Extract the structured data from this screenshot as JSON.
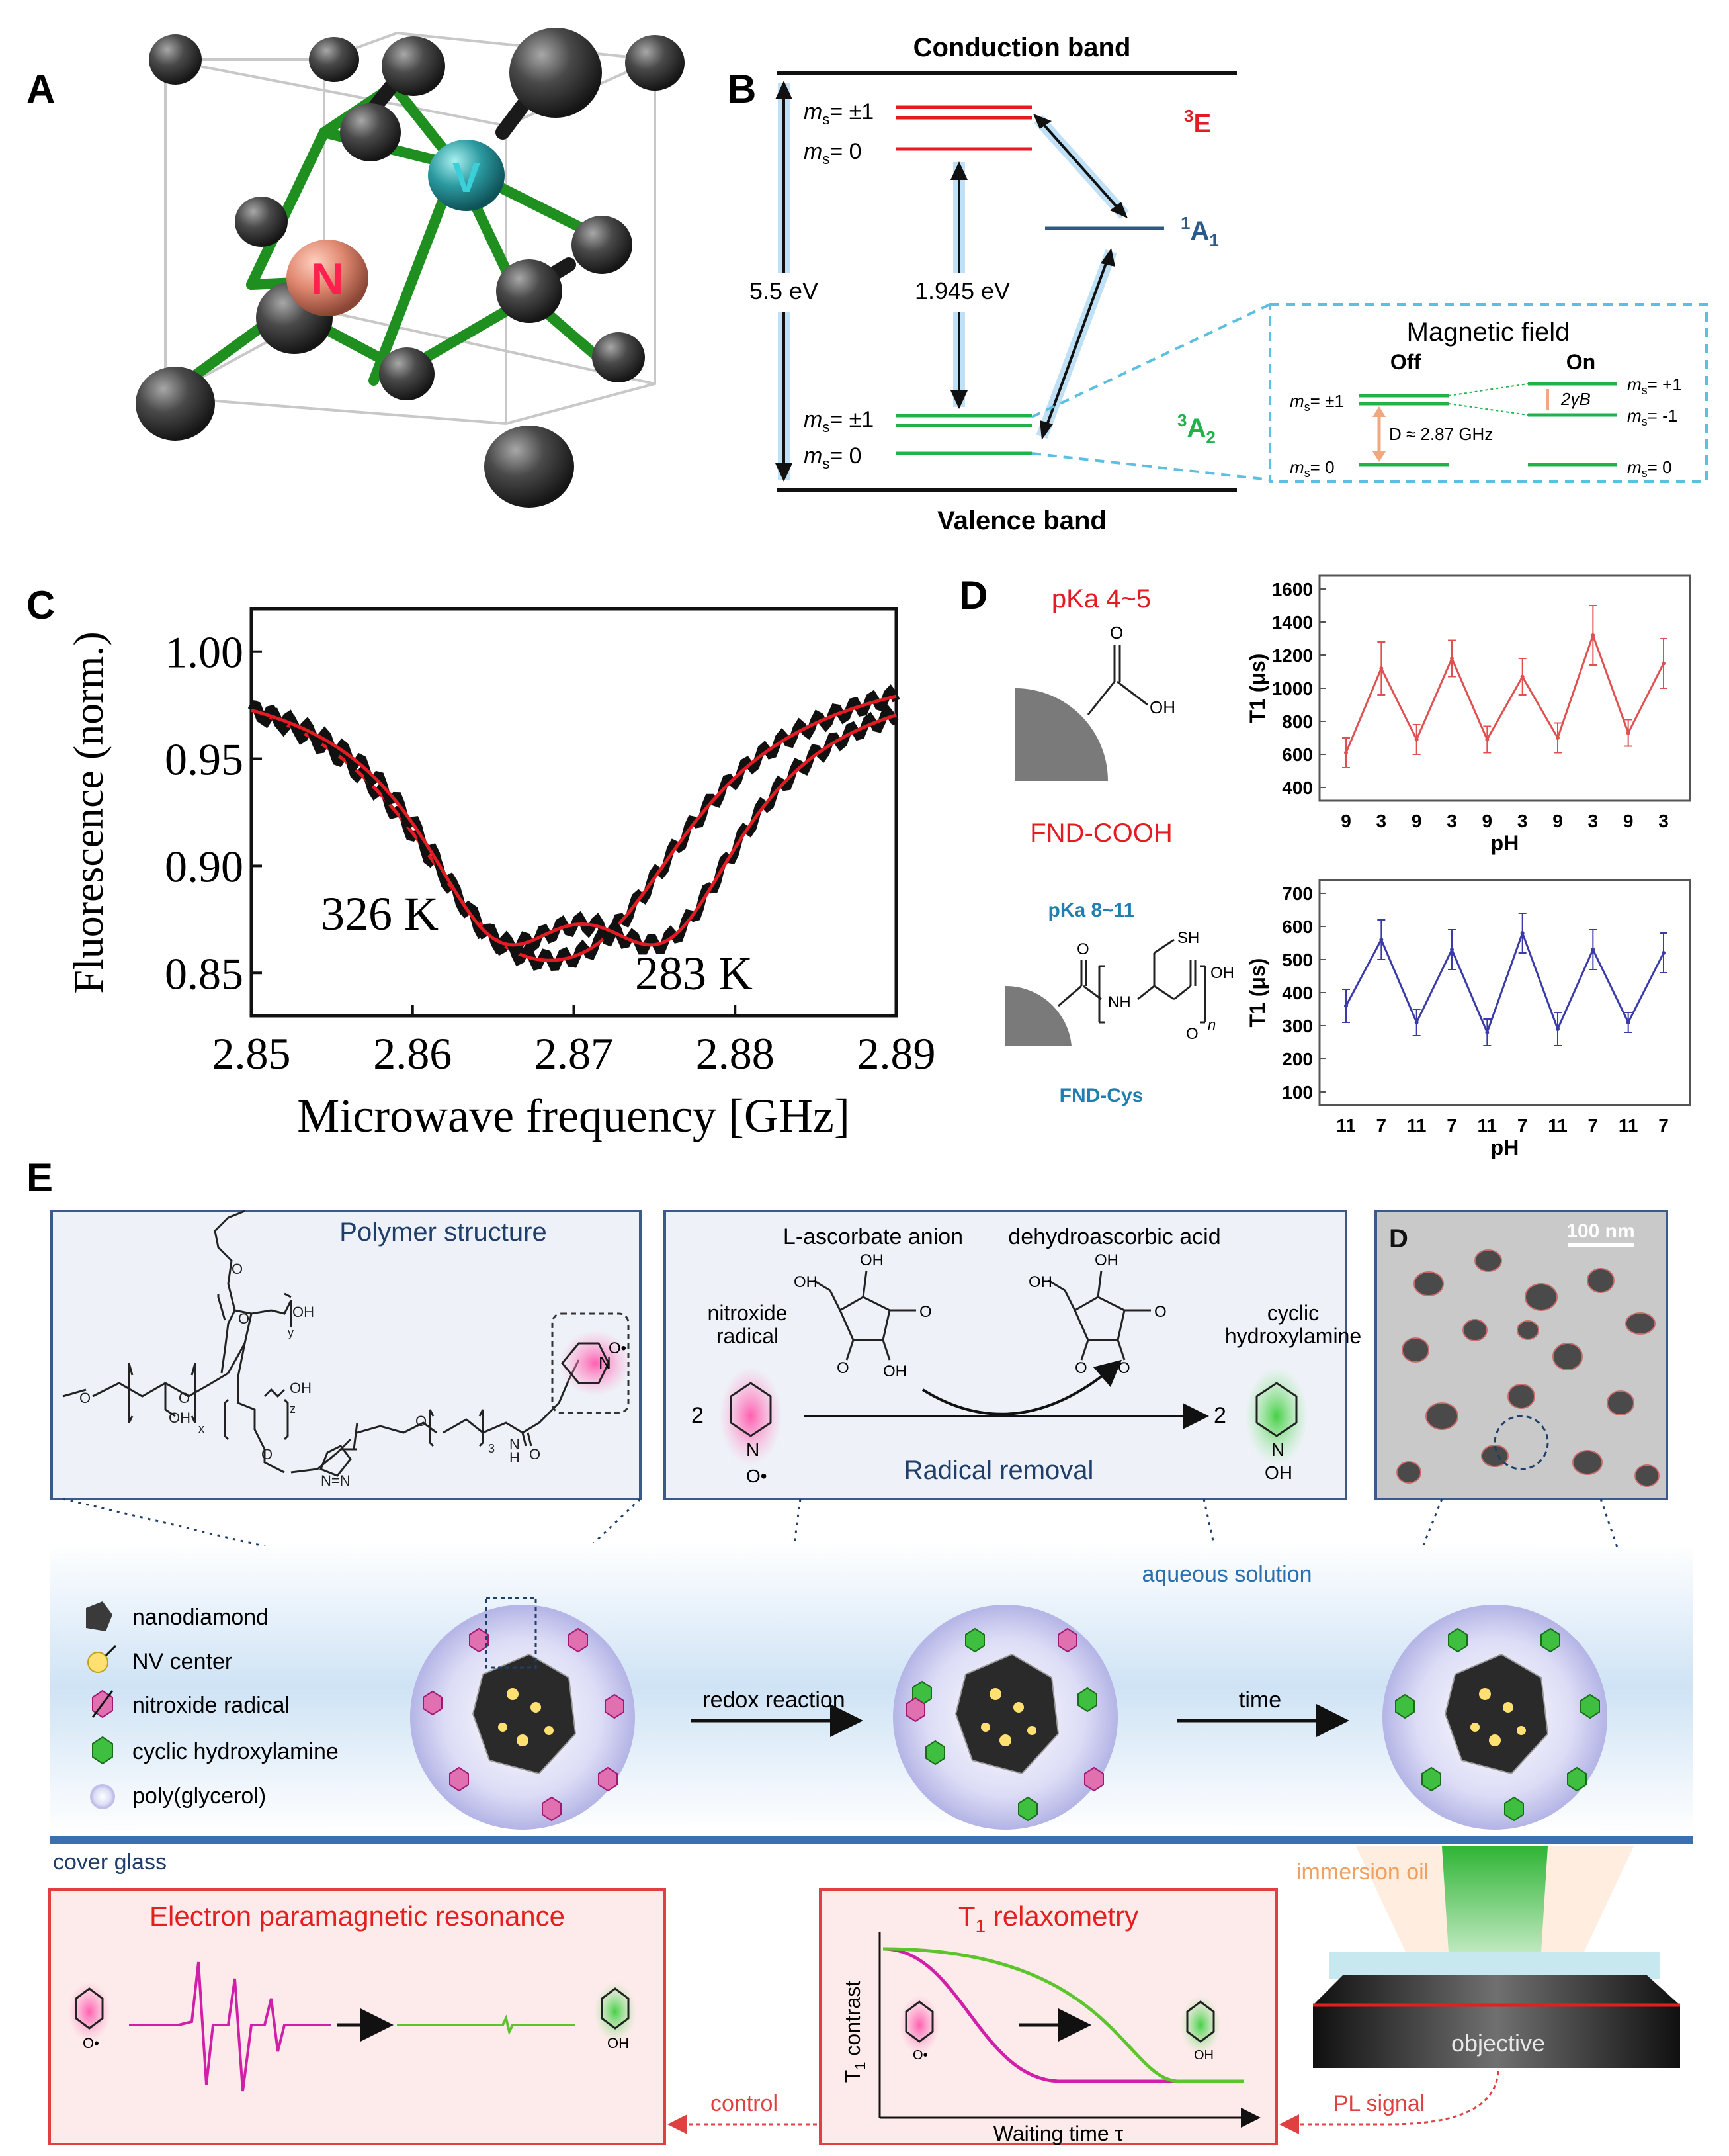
{
  "panels": {
    "a": "A",
    "b": "B",
    "c": "C",
    "d": "D",
    "e": "E"
  },
  "panelA": {
    "atom_n": "N",
    "atom_v": "V"
  },
  "panelB": {
    "conduction": "Conduction band",
    "valence": "Valence band",
    "ms_pm1": "m",
    "sub_s": "s",
    "pm1": "= ±1",
    "zero": "= 0",
    "e3": "E",
    "sup3": "3",
    "a1": "A",
    "sub1": "1",
    "sup1": "1",
    "a2": "A",
    "sub2": "2",
    "gap": "5.5 eV",
    "zpl": "1.945 eV",
    "inset": {
      "title": "Magnetic field",
      "off": "Off",
      "on": "On",
      "plus1": "= +1",
      "minus1": "= -1",
      "split": "2γB",
      "d": "D ≈ 2.87 GHz"
    }
  },
  "panelC": {
    "chart_data": {
      "type": "line",
      "xlabel": "Microwave frequency [GHz]",
      "ylabel": "Fluorescence (norm.)",
      "xlim": [
        2.85,
        2.89
      ],
      "ylim": [
        0.83,
        1.02
      ],
      "xticks": [
        "2.85",
        "2.86",
        "2.87",
        "2.88",
        "2.89"
      ],
      "yticks": [
        "1.00",
        "0.95",
        "0.90",
        "0.85"
      ],
      "series": [
        {
          "name": "326 K",
          "center": 2.8685,
          "depth": 0.137,
          "width": 0.0078,
          "split": 0.0033
        },
        {
          "name": "283 K",
          "center": 2.8705,
          "depth": 0.163,
          "width": 0.0063,
          "split": 0.0052
        }
      ],
      "annotations": [
        "326 K",
        "283 K"
      ]
    }
  },
  "panelD": {
    "cooh": {
      "pka": "pKa 4~5",
      "name": "FND-COOH",
      "oh": "OH",
      "o": "O"
    },
    "cys": {
      "pka": "pKa 8~11",
      "name": "FND-Cys",
      "sh": "SH",
      "nh": "NH",
      "oh": "OH",
      "n": "n",
      "o": "O"
    },
    "chart_data": [
      {
        "type": "line",
        "xlabel": "pH",
        "ylabel": "T1 (μs)",
        "ylim": [
          400,
          1600
        ],
        "yticks": [
          "1600",
          "1400",
          "1200",
          "1000",
          "800",
          "600",
          "400"
        ],
        "categories": [
          "9",
          "3",
          "9",
          "3",
          "9",
          "3",
          "9",
          "3",
          "9",
          "3"
        ],
        "values": [
          610,
          1120,
          690,
          1180,
          690,
          1070,
          700,
          1320,
          730,
          1150
        ],
        "errors": [
          90,
          160,
          90,
          110,
          80,
          110,
          90,
          180,
          80,
          150
        ]
      },
      {
        "type": "line",
        "xlabel": "pH",
        "ylabel": "T1 (μs)",
        "ylim": [
          100,
          700
        ],
        "yticks": [
          "700",
          "600",
          "500",
          "400",
          "300",
          "200",
          "100"
        ],
        "categories": [
          "11",
          "7",
          "11",
          "7",
          "11",
          "7",
          "11",
          "7",
          "11",
          "7"
        ],
        "values": [
          360,
          560,
          310,
          530,
          280,
          580,
          290,
          530,
          310,
          520
        ],
        "errors": [
          50,
          60,
          40,
          60,
          40,
          60,
          50,
          60,
          30,
          60
        ]
      }
    ]
  },
  "panelE": {
    "polymer_title": "Polymer structure",
    "poly_labels": {
      "o": "O",
      "oh": "OH",
      "x": "x",
      "y": "y",
      "z": "z",
      "n": "N",
      "h": "H",
      "three": "3",
      "nnn": "N=N",
      "o_rad": "O•"
    },
    "reaction": {
      "ascorbate": "L-ascorbate anion",
      "dehydro": "dehydroascorbic acid",
      "nitroxide": "nitroxide\nradical",
      "nitroxide1": "nitroxide",
      "nitroxide2": "radical",
      "cyclic1": "cyclic",
      "cyclic2": "hydroxylamine",
      "coef": "2",
      "removal": "Radical removal",
      "oh": "OH",
      "o": "O",
      "n": "N"
    },
    "tem": {
      "label": "D",
      "scale": "100 nm"
    },
    "solution": "aqueous solution",
    "legend": [
      "nanodiamond",
      "NV center",
      "nitroxide radical",
      "cyclic hydroxylamine",
      "poly(glycerol)"
    ],
    "redox": "redox reaction",
    "time": "time",
    "cover": "cover glass",
    "immersion": "immersion oil",
    "objective": "objective",
    "epr_title": "Electron paramagnetic resonance",
    "t1_title": "T",
    "t1_sub": "1",
    "t1_rest": " relaxometry",
    "t1_ylabel": "T",
    "t1_ylabel_sub": "1",
    "t1_ylabel_rest": " contrast",
    "t1_xlabel": "Waiting time τ",
    "control": "control",
    "pl": "PL signal"
  },
  "colors": {
    "red": "#e31b23",
    "green": "#22b24c",
    "blue": "#1f3f8a",
    "teal": "#2a9fc0",
    "magenta": "#d01a9a",
    "lightgreen": "#5cc52e",
    "darkgreen": "#1e8c1e"
  }
}
